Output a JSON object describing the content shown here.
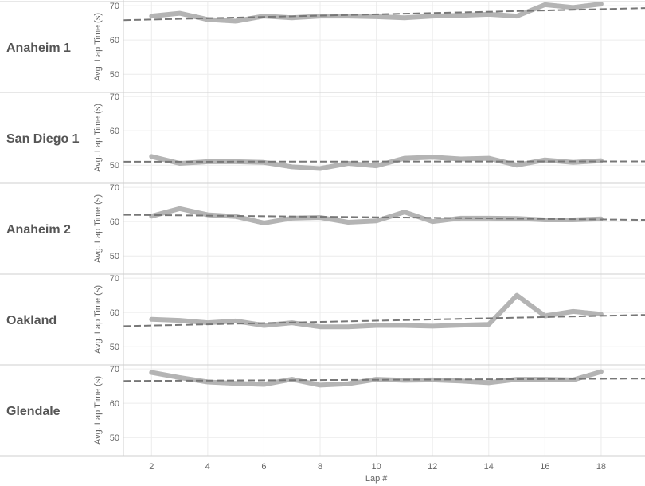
{
  "chart_data": {
    "type": "line",
    "title": "",
    "xlabel": "Lap #",
    "ylabel": "Avg. Lap Time (s)",
    "x": [
      2,
      3,
      4,
      5,
      6,
      7,
      8,
      9,
      10,
      11,
      12,
      13,
      14,
      15,
      16,
      17,
      18
    ],
    "x_ticks": [
      2,
      4,
      6,
      8,
      10,
      12,
      14,
      16,
      18
    ],
    "y_ticks": [
      50,
      60,
      70
    ],
    "xlim": [
      1,
      19.56
    ],
    "ylim": [
      44.7,
      71.2
    ],
    "grid": true,
    "series": [
      {
        "name": "Anaheim 1",
        "values": [
          67,
          67.8,
          66,
          65.5,
          67,
          66.5,
          67,
          67,
          66.8,
          66.5,
          67,
          67.2,
          67.5,
          67,
          70.3,
          69.5,
          70.5
        ],
        "trend": [
          65.8,
          69.3
        ]
      },
      {
        "name": "San Diego 1",
        "values": [
          52.5,
          50.5,
          51,
          51,
          50.8,
          49.5,
          49,
          50.5,
          49.8,
          52,
          52.3,
          51.8,
          52,
          50,
          51.5,
          50.8,
          51.3
        ],
        "trend": [
          51,
          51.1
        ]
      },
      {
        "name": "Anaheim 2",
        "values": [
          61.6,
          63.8,
          62,
          61.5,
          59.6,
          61,
          61.2,
          59.8,
          60.2,
          62.8,
          60,
          61,
          61,
          60.9,
          60.5,
          60.5,
          60.8
        ],
        "trend": [
          62,
          60.5
        ]
      },
      {
        "name": "Oakland",
        "values": [
          58,
          57.7,
          57,
          57.5,
          56.2,
          57,
          55.8,
          55.8,
          56.2,
          56.2,
          56,
          56.3,
          56.5,
          65,
          59,
          60.3,
          59.5
        ],
        "trend": [
          56,
          59.3
        ]
      },
      {
        "name": "Glendale",
        "values": [
          69,
          67.5,
          66.2,
          65.8,
          65.5,
          67,
          65.3,
          65.7,
          67,
          66.7,
          66.8,
          66.5,
          66,
          67,
          67,
          66.8,
          69.2
        ],
        "trend": [
          66.5,
          67.2
        ]
      }
    ],
    "colors": {
      "line": "#b4b4b4",
      "trend": "#777777",
      "grid": "#ececec",
      "border": "#cfcfcf"
    }
  }
}
